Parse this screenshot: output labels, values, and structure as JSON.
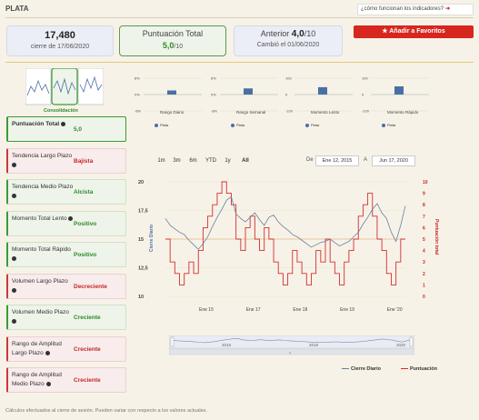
{
  "header": {
    "title": "PLATA",
    "help_link": "¿cómo funcionan los indicadores?",
    "help_arrow": "➔"
  },
  "cards": {
    "close_value": "17,480",
    "close_date": "cierre de 17/06/2020",
    "score_label": "Puntuación Total",
    "score_value": "5,0",
    "score_scale": "/10",
    "prev_label": "Anterior",
    "prev_value": "4,0",
    "prev_scale": "/10",
    "prev_date": "Cambió el 01/06/2020"
  },
  "favorites_button": {
    "icon": "star-icon",
    "label": "Añadir a Favoritos"
  },
  "consolidation": {
    "label": "Consolidación"
  },
  "signals": [
    {
      "name": "Puntuación Total",
      "verdict": "5,0",
      "state": "positive"
    },
    {
      "name": "Tendencia Largo Plazo",
      "verdict": "Bajista",
      "state": "negative"
    },
    {
      "name": "Tendencia Medio Plazo",
      "verdict": "Alcista",
      "state": "positive"
    },
    {
      "name": "Momento Total Lento",
      "verdict": "Positivo",
      "state": "positive"
    },
    {
      "name": "Momento Total Rápido",
      "verdict": "Positivo",
      "state": "positive"
    },
    {
      "name": "Volumen Largo Plazo",
      "verdict": "Decreciente",
      "state": "negative"
    },
    {
      "name": "Volumen Medio Plazo",
      "verdict": "Creciente",
      "state": "positive"
    },
    {
      "name": "Rango de Amplitud Largo Plazo",
      "verdict": "Creciente",
      "state": "negative"
    },
    {
      "name": "Rango de Amplitud Medio Plazo",
      "verdict": "Creciente",
      "state": "negative"
    }
  ],
  "mini_charts": [
    {
      "caption": "Rango Diario",
      "legend": "Plata",
      "yticks": [
        "8%",
        "0%",
        "-8%"
      ],
      "value": 2
    },
    {
      "caption": "Rango Semanal",
      "legend": "Plata",
      "yticks": [
        "8%",
        "0%",
        "-8%"
      ],
      "value": 3
    },
    {
      "caption": "Momento Lento",
      "legend": "Plata",
      "yticks": [
        "100",
        "0",
        "-100"
      ],
      "value": 45
    },
    {
      "caption": "Momento Rápido",
      "legend": "Plata",
      "yticks": [
        "100",
        "0",
        "-100"
      ],
      "value": 50
    }
  ],
  "range_selector": {
    "buttons": [
      "1m",
      "3m",
      "6m",
      "YTD",
      "1y",
      "All"
    ],
    "active": "All",
    "from_label": "De",
    "from_value": "Ene 12, 2015",
    "to_label": "A",
    "to_value": "Jun 17, 2020"
  },
  "chart_data": {
    "type": "line",
    "x_ticks": [
      "Ene 15",
      "Ene 17",
      "Ene 18",
      "Ene 19",
      "Ene '20"
    ],
    "yleft_label": "Cierre Diario",
    "yleft_ticks": [
      "20",
      "17,5",
      "15",
      "12,5",
      "10"
    ],
    "yleft_range": [
      10,
      20
    ],
    "yright_label": "Puntuación total",
    "yright_ticks": [
      "10",
      "9",
      "8",
      "7",
      "6",
      "5",
      "4",
      "3",
      "2",
      "1",
      "0"
    ],
    "yright_range": [
      0,
      10
    ],
    "series": [
      {
        "name": "Cierre Diario",
        "color": "#6b7fa3",
        "values": [
          16.8,
          16.2,
          15.9,
          15.6,
          15.4,
          14.9,
          14.5,
          14.1,
          14.6,
          15.2,
          16.1,
          16.9,
          17.6,
          18.4,
          18.7,
          17.2,
          16.8,
          16.5,
          16.9,
          17.3,
          16.7,
          16.2,
          16.9,
          17.1,
          16.5,
          16.1,
          15.8,
          15.4,
          15.2,
          14.9,
          14.6,
          14.3,
          14.5,
          14.7,
          14.8,
          15.0,
          14.7,
          14.4,
          14.6,
          14.8,
          15.2,
          15.6,
          16.3,
          16.9,
          17.6,
          18.1,
          17.3,
          16.8,
          15.6,
          14.8,
          16.2,
          17.9
        ]
      },
      {
        "name": "Puntuación",
        "color": "#d32f2f",
        "values": [
          5,
          3,
          2,
          1,
          2,
          3,
          2,
          4,
          6,
          7,
          8,
          9,
          10,
          9,
          8,
          5,
          4,
          6,
          7,
          5,
          4,
          6,
          5,
          3,
          2,
          1,
          2,
          4,
          3,
          2,
          1,
          2,
          4,
          3,
          5,
          3,
          2,
          1,
          3,
          4,
          5,
          7,
          8,
          9,
          7,
          5,
          4,
          2,
          1,
          3,
          5,
          5
        ]
      }
    ],
    "reference_line": 5,
    "navigator_ticks": [
      "2016",
      "2018",
      "2020"
    ],
    "legend_position": "bottom-right"
  },
  "footnote": "Cálculos efectuados al cierre de sesión. Pueden variar con respecto a los valores actuales."
}
